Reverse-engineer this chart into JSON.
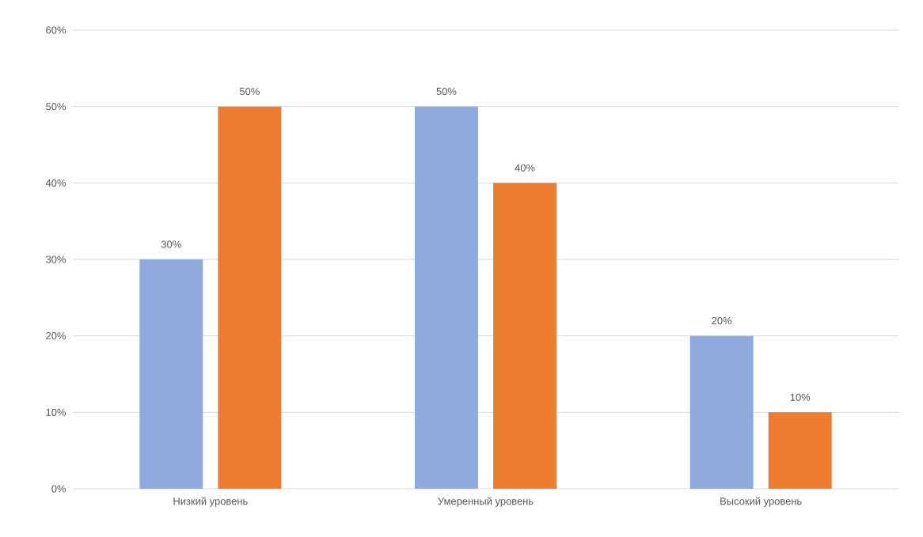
{
  "chart_data": {
    "type": "bar",
    "categories": [
      "Низкий уровень",
      "Умеренный уровень",
      "Высокий уровень"
    ],
    "series": [
      {
        "color": "#8faadc",
        "values": [
          30,
          50,
          20
        ],
        "value_labels": [
          "30%",
          "50%",
          "20%"
        ]
      },
      {
        "color": "#ed7d31",
        "values": [
          50,
          40,
          10
        ],
        "value_labels": [
          "50%",
          "40%",
          "10%"
        ]
      }
    ],
    "ylim": [
      0,
      60
    ],
    "yticks": [
      {
        "value": 0,
        "label": "0%"
      },
      {
        "value": 10,
        "label": "10%"
      },
      {
        "value": 20,
        "label": "20%"
      },
      {
        "value": 30,
        "label": "30%"
      },
      {
        "value": 40,
        "label": "40%"
      },
      {
        "value": 50,
        "label": "50%"
      },
      {
        "value": 60,
        "label": "60%"
      }
    ],
    "grid": "y"
  }
}
